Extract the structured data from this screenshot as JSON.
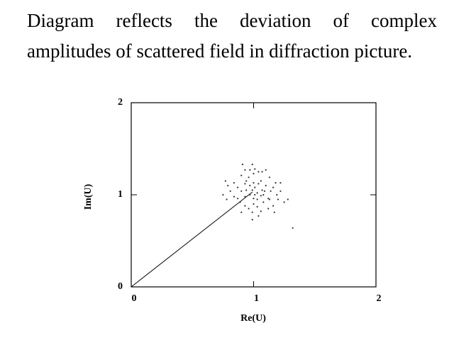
{
  "caption": "Diagram reflects the deviation of complex amplitudes of scattered field in diffraction picture.",
  "chart_data": {
    "type": "scatter",
    "x_label": "Re(U)",
    "y_label": "Im(U)",
    "xlim": [
      0,
      2
    ],
    "ylim": [
      0,
      2
    ],
    "xticks": [
      0,
      1,
      2
    ],
    "yticks": [
      0,
      1,
      2
    ],
    "color": "#333333",
    "vector": {
      "x": [
        0,
        0.99
      ],
      "y": [
        0,
        1.03
      ]
    },
    "x": [
      0.77,
      0.79,
      0.84,
      0.87,
      0.9,
      0.93,
      0.94,
      0.96,
      0.97,
      0.99,
      1.0,
      1.01,
      1.03,
      1.04,
      1.06,
      1.07,
      1.08,
      1.1,
      1.12,
      1.13,
      1.14,
      1.16,
      1.18,
      1.19,
      1.2,
      1.22,
      1.25,
      1.28,
      0.97,
      1.0,
      1.04,
      1.07,
      1.1,
      1.01,
      0.9,
      0.81,
      0.84,
      0.89,
      0.93,
      0.96,
      0.99,
      1.0,
      1.03,
      1.06,
      1.08,
      0.93,
      0.87,
      0.78,
      0.75,
      0.99,
      0.9,
      1.12,
      1.16,
      1.04,
      1.32,
      0.94,
      0.97,
      1.0,
      1.03,
      1.06,
      1.09,
      1.13,
      1.17,
      1.22,
      1.01,
      0.93,
      0.91,
      0.99
    ],
    "y": [
      1.15,
      1.1,
      1.13,
      1.08,
      1.04,
      1.12,
      1.15,
      1.19,
      1.1,
      1.05,
      1.13,
      1.08,
      1.02,
      1.12,
      1.15,
      1.05,
      1.0,
      1.1,
      0.96,
      1.19,
      1.04,
      1.08,
      1.13,
      1.0,
      0.95,
      1.04,
      0.92,
      0.95,
      1.27,
      1.23,
      1.25,
      1.25,
      1.27,
      1.28,
      1.21,
      1.04,
      0.98,
      0.92,
      0.88,
      0.85,
      0.81,
      0.9,
      0.87,
      0.82,
      0.92,
      0.98,
      0.96,
      0.95,
      1.0,
      0.73,
      0.81,
      0.85,
      0.88,
      0.77,
      0.64,
      1.05,
      1.0,
      0.96,
      0.95,
      0.99,
      1.04,
      0.95,
      0.81,
      1.13,
      1.0,
      1.27,
      1.33,
      1.33
    ]
  }
}
